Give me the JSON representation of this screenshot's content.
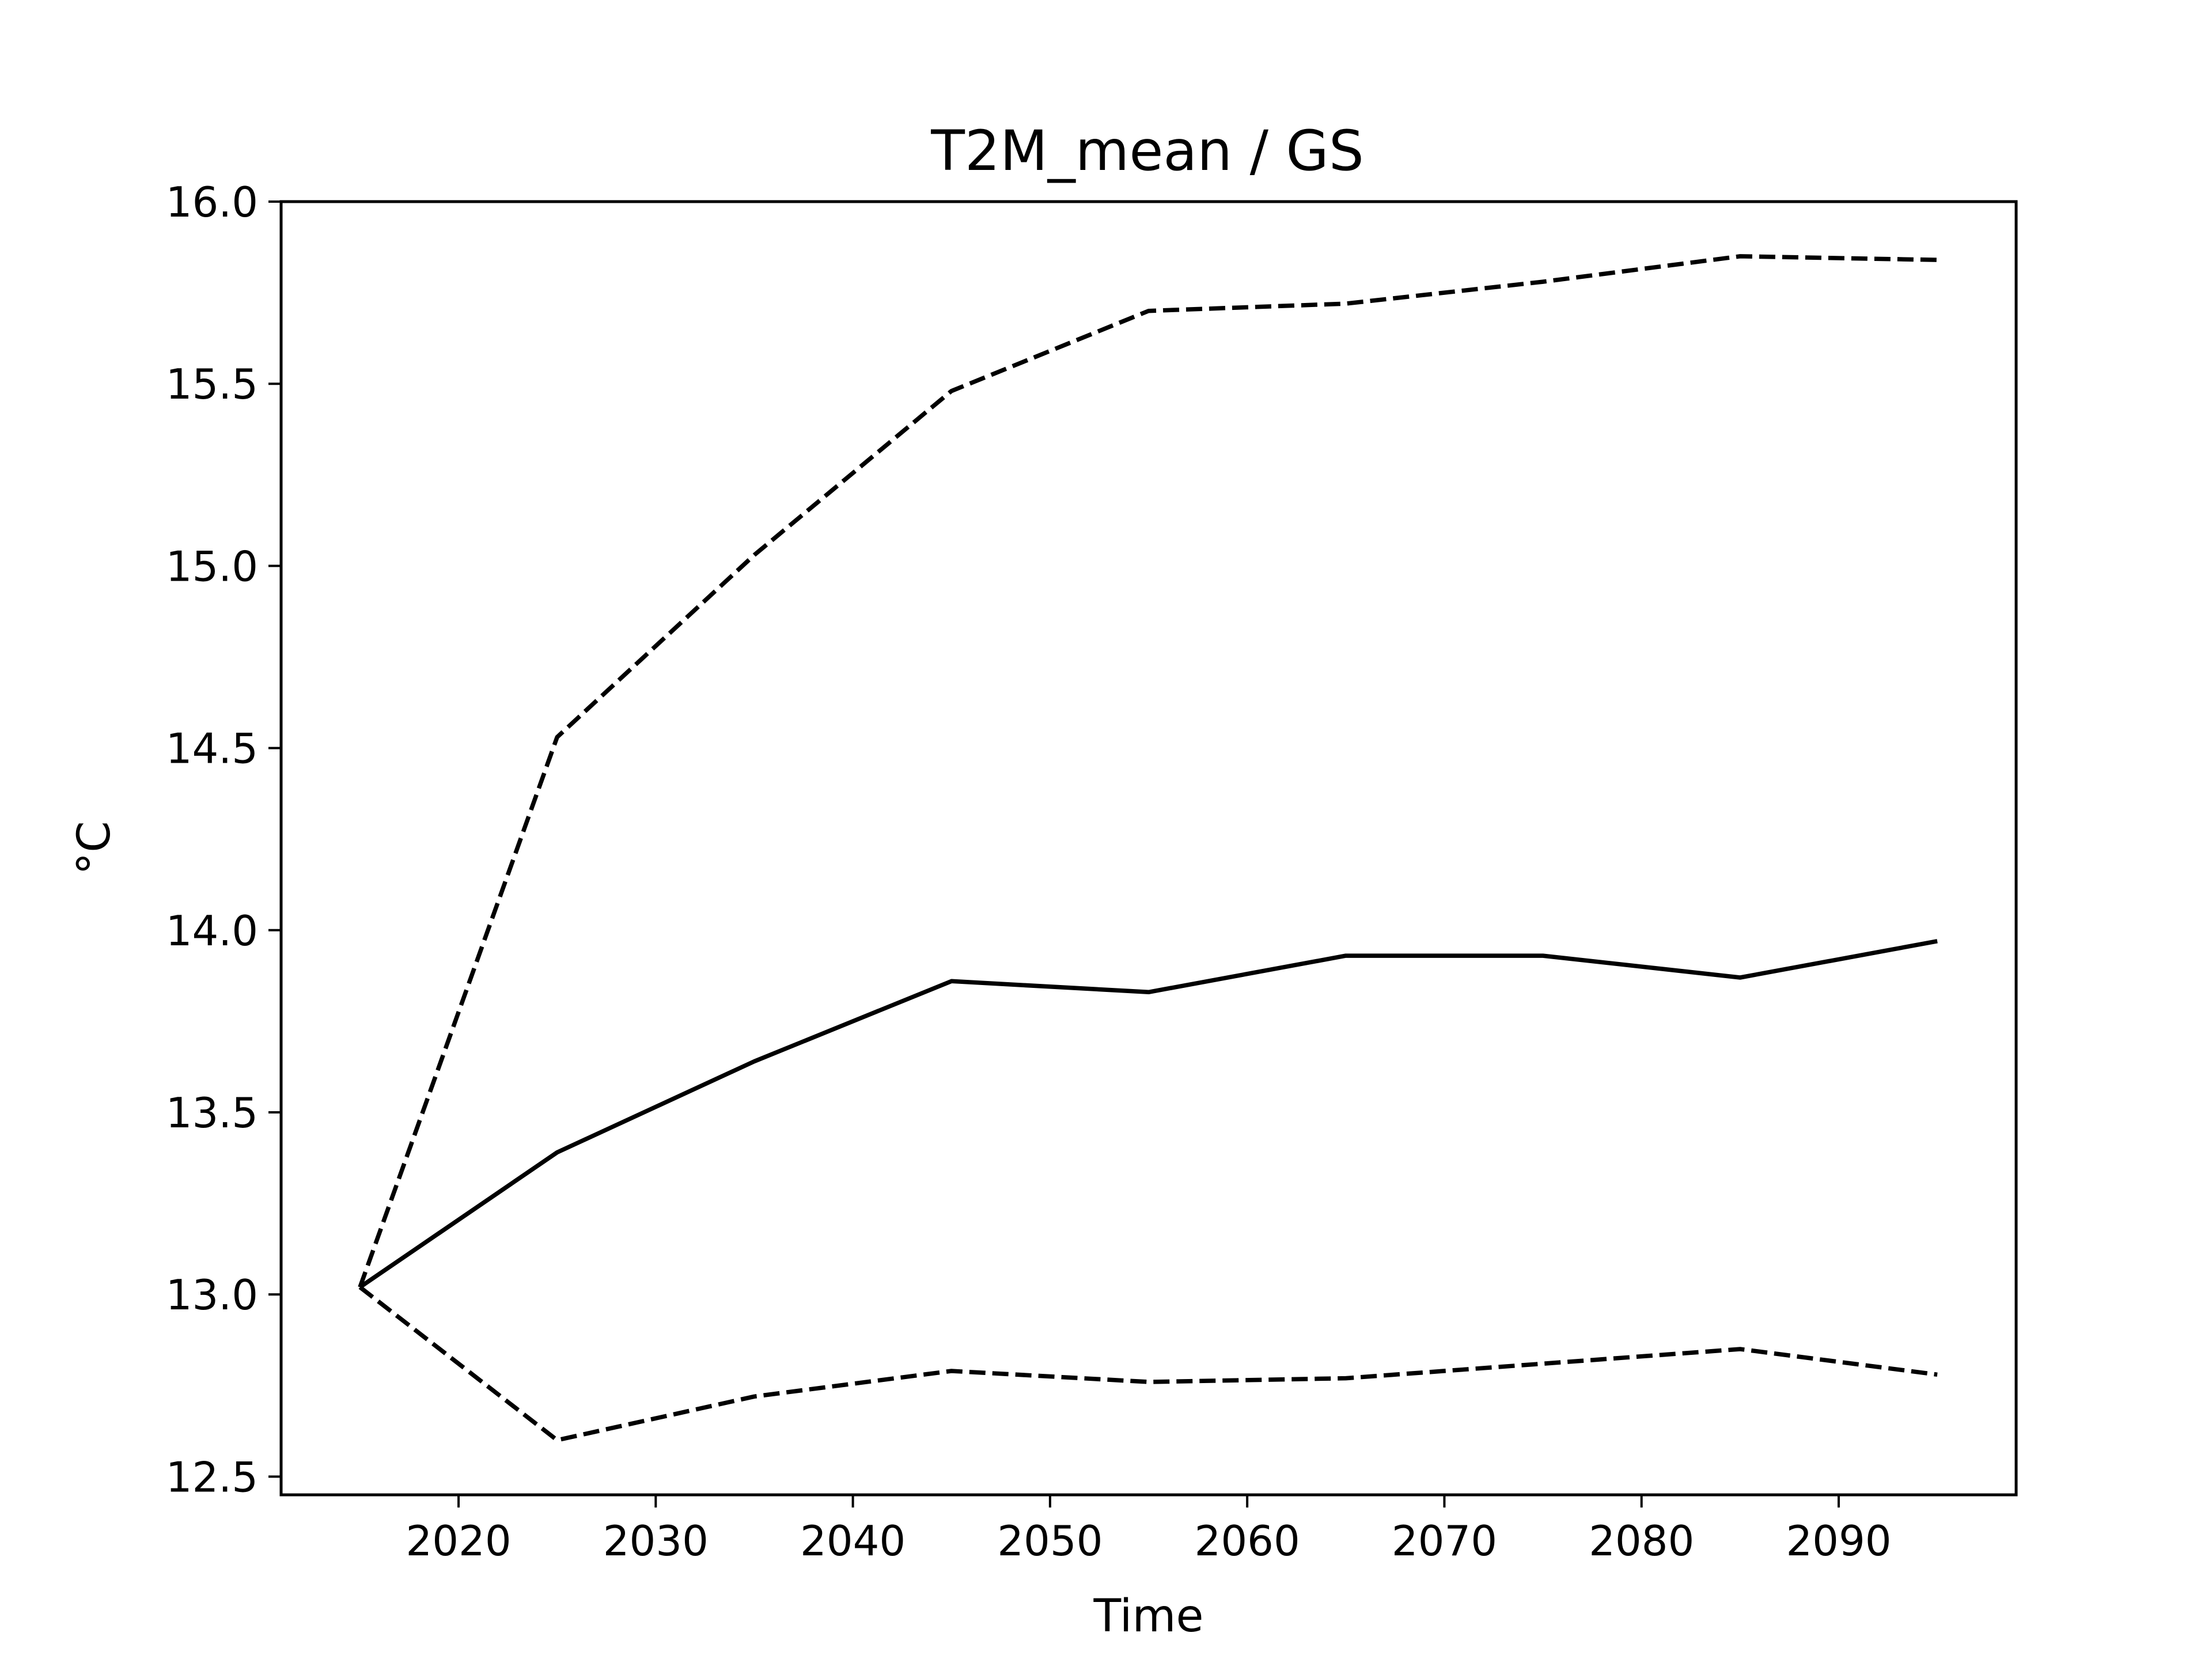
{
  "chart_data": {
    "type": "line",
    "title": "T2M_mean / GS",
    "xlabel": "Time",
    "ylabel": "°C",
    "xlim": [
      2011,
      2099
    ],
    "ylim": [
      12.45,
      16.0
    ],
    "x_ticks": [
      2020,
      2030,
      2040,
      2050,
      2060,
      2070,
      2080,
      2090
    ],
    "y_ticks": [
      12.5,
      13.0,
      13.5,
      14.0,
      14.5,
      15.0,
      15.5,
      16.0
    ],
    "y_tick_labels": [
      "12.5",
      "13.0",
      "13.5",
      "14.0",
      "14.5",
      "15.0",
      "15.5",
      "16.0"
    ],
    "grid": false,
    "x": [
      2015,
      2025,
      2035,
      2045,
      2055,
      2065,
      2075,
      2085,
      2095
    ],
    "series": [
      {
        "style": "dashed",
        "color": "#000000",
        "values": [
          13.02,
          14.53,
          15.03,
          15.48,
          15.7,
          15.72,
          15.78,
          15.85,
          15.84
        ]
      },
      {
        "style": "solid",
        "color": "#000000",
        "values": [
          13.02,
          13.39,
          13.64,
          13.86,
          13.83,
          13.93,
          13.93,
          13.87,
          13.97
        ]
      },
      {
        "style": "dashed",
        "color": "#000000",
        "values": [
          13.02,
          12.6,
          12.72,
          12.79,
          12.76,
          12.77,
          12.81,
          12.85,
          12.78
        ]
      }
    ]
  }
}
